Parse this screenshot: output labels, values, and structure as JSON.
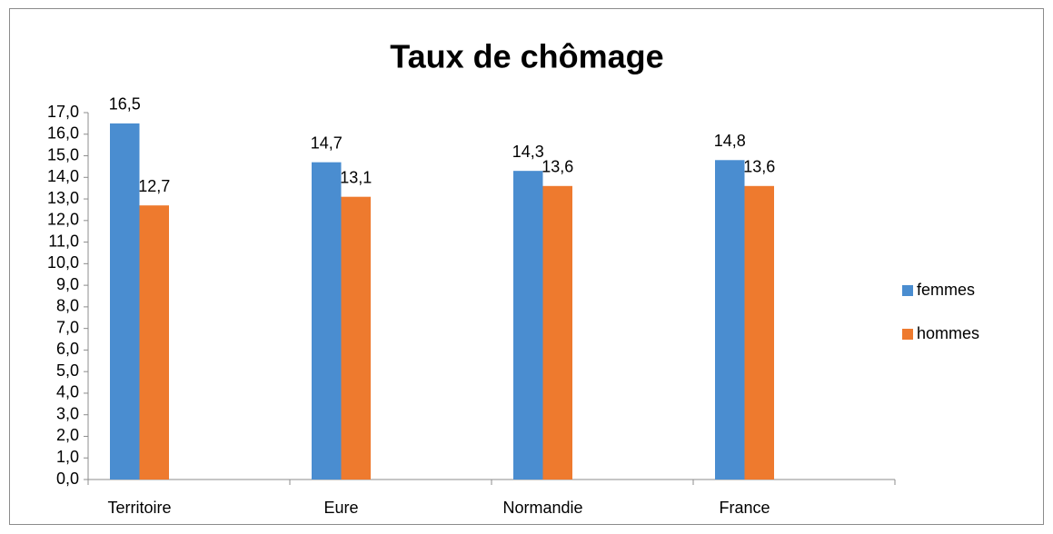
{
  "chart_data": {
    "type": "bar",
    "title": "Taux de chômage",
    "categories": [
      "Territoire",
      "Eure",
      "Normandie",
      "France"
    ],
    "series": [
      {
        "name": "femmes",
        "color": "#4a8dd0",
        "values": [
          16.5,
          14.7,
          14.3,
          14.8
        ],
        "value_labels": [
          "16,5",
          "14,7",
          "14,3",
          "14,8"
        ]
      },
      {
        "name": "hommes",
        "color": "#ee7a2e",
        "values": [
          12.7,
          13.1,
          13.6,
          13.6
        ],
        "value_labels": [
          "12,7",
          "13,1",
          "13,6",
          "13,6"
        ]
      }
    ],
    "ylim": [
      0,
      17
    ],
    "yticks": [
      {
        "value": 0,
        "label": "0,0"
      },
      {
        "value": 1,
        "label": "1,0"
      },
      {
        "value": 2,
        "label": "2,0"
      },
      {
        "value": 3,
        "label": "3,0"
      },
      {
        "value": 4,
        "label": "4,0"
      },
      {
        "value": 5,
        "label": "5,0"
      },
      {
        "value": 6,
        "label": "6,0"
      },
      {
        "value": 7,
        "label": "7,0"
      },
      {
        "value": 8,
        "label": "8,0"
      },
      {
        "value": 9,
        "label": "9,0"
      },
      {
        "value": 10,
        "label": "10,0"
      },
      {
        "value": 11,
        "label": "11,0"
      },
      {
        "value": 12,
        "label": "12,0"
      },
      {
        "value": 13,
        "label": "13,0"
      },
      {
        "value": 14,
        "label": "14,0"
      },
      {
        "value": 15,
        "label": "15,0"
      },
      {
        "value": 16,
        "label": "16,0"
      },
      {
        "value": 17,
        "label": "17,0"
      }
    ],
    "grid": false,
    "legend": "right"
  }
}
